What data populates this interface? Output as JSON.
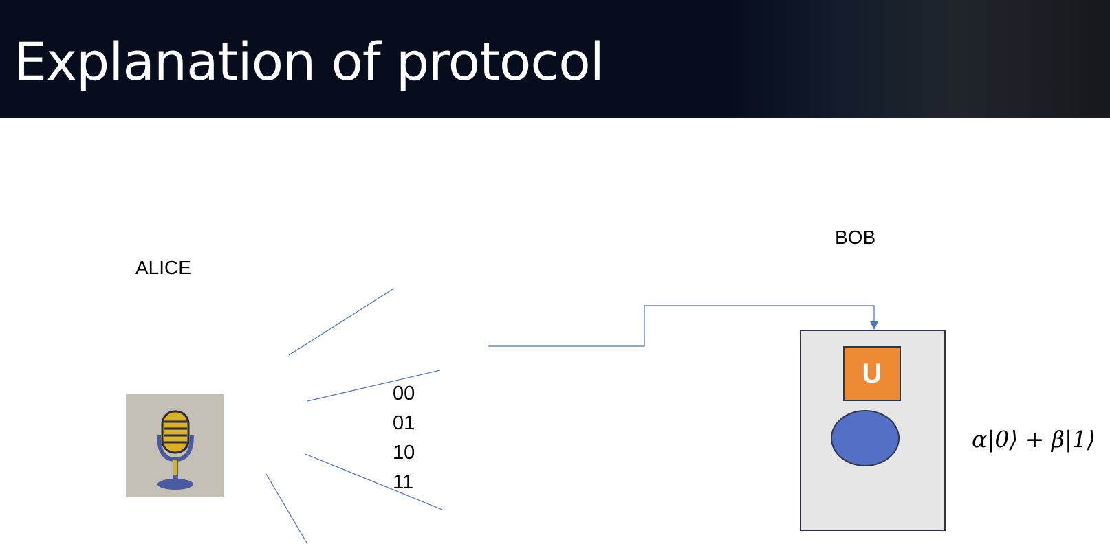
{
  "header": {
    "title": "Explanation of protocol"
  },
  "alice": {
    "label": "ALICE",
    "icon": "microphone-icon"
  },
  "bob": {
    "label": "BOB",
    "gate_label": "U"
  },
  "bits": [
    "00",
    "01",
    "10",
    "11"
  ],
  "state_text": "α|0⟩ + β|1⟩",
  "colors": {
    "line": "#4472c4",
    "gate": "#ed8a33",
    "qubit": "#5470c6",
    "header": "#070d1c",
    "box": "#e6e6e6"
  }
}
